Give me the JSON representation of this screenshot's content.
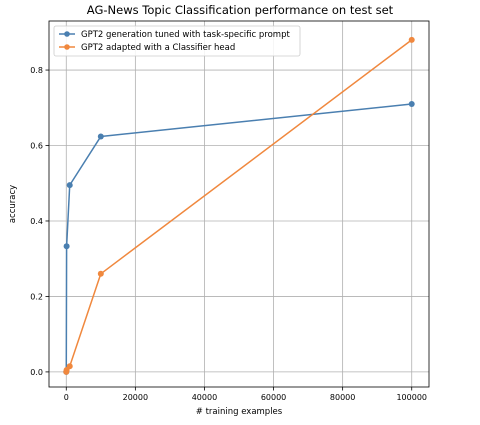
{
  "chart_data": {
    "type": "line",
    "title": "AG-News Topic Classification performance on test set",
    "xlabel": "# training examples",
    "ylabel": "accuracy",
    "xlim": [
      -5000,
      105000
    ],
    "ylim": [
      -0.04,
      0.93
    ],
    "xticks": [
      0,
      20000,
      40000,
      60000,
      80000,
      100000
    ],
    "yticks": [
      0.0,
      0.2,
      0.4,
      0.6,
      0.8
    ],
    "xtick_labels": [
      "0",
      "20000",
      "40000",
      "60000",
      "80000",
      "100000"
    ],
    "ytick_labels": [
      "0.0",
      "0.2",
      "0.4",
      "0.6",
      "0.8"
    ],
    "grid": true,
    "legend_position": "upper-left",
    "series": [
      {
        "name": "GPT2 generation tuned with task-specific prompt",
        "color": "#4a7fb0",
        "x": [
          0,
          100,
          1000,
          10000,
          100000
        ],
        "y": [
          0.0,
          0.333,
          0.495,
          0.624,
          0.71
        ]
      },
      {
        "name": "GPT2 adapted with a Classifier head",
        "color": "#f0883e",
        "x": [
          0,
          100,
          1000,
          10000,
          100000
        ],
        "y": [
          0.0,
          0.005,
          0.015,
          0.26,
          0.88
        ]
      }
    ]
  }
}
